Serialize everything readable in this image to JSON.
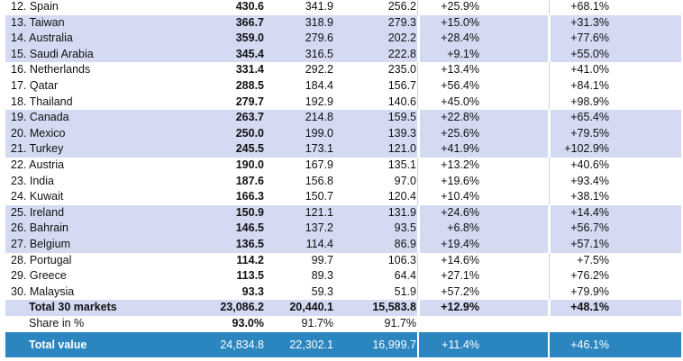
{
  "rows": [
    {
      "name": "12. Spain",
      "v1": "430.6",
      "v2": "341.9",
      "v3": "256.2",
      "p1": "+25.9%",
      "p2": "+68.1%",
      "shade": false
    },
    {
      "name": "13. Taiwan",
      "v1": "366.7",
      "v2": "318.9",
      "v3": "279.3",
      "p1": "+15.0%",
      "p2": "+31.3%",
      "shade": true
    },
    {
      "name": "14. Australia",
      "v1": "359.0",
      "v2": "279.6",
      "v3": "202.2",
      "p1": "+28.4%",
      "p2": "+77.6%",
      "shade": true
    },
    {
      "name": "15. Saudi Arabia",
      "v1": "345.4",
      "v2": "316.5",
      "v3": "222.8",
      "p1": "+9.1%",
      "p2": "+55.0%",
      "shade": true
    },
    {
      "name": "16. Netherlands",
      "v1": "331.4",
      "v2": "292.2",
      "v3": "235.0",
      "p1": "+13.4%",
      "p2": "+41.0%",
      "shade": false
    },
    {
      "name": "17. Qatar",
      "v1": "288.5",
      "v2": "184.4",
      "v3": "156.7",
      "p1": "+56.4%",
      "p2": "+84.1%",
      "shade": false
    },
    {
      "name": "18. Thailand",
      "v1": "279.7",
      "v2": "192.9",
      "v3": "140.6",
      "p1": "+45.0%",
      "p2": "+98.9%",
      "shade": false
    },
    {
      "name": "19. Canada",
      "v1": "263.7",
      "v2": "214.8",
      "v3": "159.5",
      "p1": "+22.8%",
      "p2": "+65.4%",
      "shade": true
    },
    {
      "name": "20. Mexico",
      "v1": "250.0",
      "v2": "199.0",
      "v3": "139.3",
      "p1": "+25.6%",
      "p2": "+79.5%",
      "shade": true
    },
    {
      "name": "21. Turkey",
      "v1": "245.5",
      "v2": "173.1",
      "v3": "121.0",
      "p1": "+41.9%",
      "p2": "+102.9%",
      "shade": true
    },
    {
      "name": "22. Austria",
      "v1": "190.0",
      "v2": "167.9",
      "v3": "135.1",
      "p1": "+13.2%",
      "p2": "+40.6%",
      "shade": false
    },
    {
      "name": "23. India",
      "v1": "187.6",
      "v2": "156.8",
      "v3": "97.0",
      "p1": "+19.6%",
      "p2": "+93.4%",
      "shade": false
    },
    {
      "name": "24. Kuwait",
      "v1": "166.3",
      "v2": "150.7",
      "v3": "120.4",
      "p1": "+10.4%",
      "p2": "+38.1%",
      "shade": false
    },
    {
      "name": "25. Ireland",
      "v1": "150.9",
      "v2": "121.1",
      "v3": "131.9",
      "p1": "+24.6%",
      "p2": "+14.4%",
      "shade": true
    },
    {
      "name": "26. Bahrain",
      "v1": "146.5",
      "v2": "137.2",
      "v3": "93.5",
      "p1": "+6.8%",
      "p2": "+56.7%",
      "shade": true
    },
    {
      "name": "27. Belgium",
      "v1": "136.5",
      "v2": "114.4",
      "v3": "86.9",
      "p1": "+19.4%",
      "p2": "+57.1%",
      "shade": true
    },
    {
      "name": "28. Portugal",
      "v1": "114.2",
      "v2": "99.7",
      "v3": "106.3",
      "p1": "+14.6%",
      "p2": "+7.5%",
      "shade": false
    },
    {
      "name": "29. Greece",
      "v1": "113.5",
      "v2": "89.3",
      "v3": "64.4",
      "p1": "+27.1%",
      "p2": "+76.2%",
      "shade": false
    },
    {
      "name": "30. Malaysia",
      "v1": "93.3",
      "v2": "59.3",
      "v3": "51.9",
      "p1": "+57.2%",
      "p2": "+79.9%",
      "shade": false
    }
  ],
  "total30": {
    "name": "Total 30 markets",
    "v1": "23,086.2",
    "v2": "20,440.1",
    "v3": "15,583.8",
    "p1": "+12.9%",
    "p2": "+48.1%"
  },
  "share": {
    "name": "Share in %",
    "v1": "93.0%",
    "v2": "91.7%",
    "v3": "91.7%"
  },
  "grand": {
    "name": "Total value",
    "v1": "24,834.8",
    "v2": "22,302.1",
    "v3": "16,999.7",
    "p1": "+11.4%",
    "p2": "+46.1%"
  },
  "colors": {
    "shade": "#d3daf1",
    "grand": "#2b86bf"
  }
}
